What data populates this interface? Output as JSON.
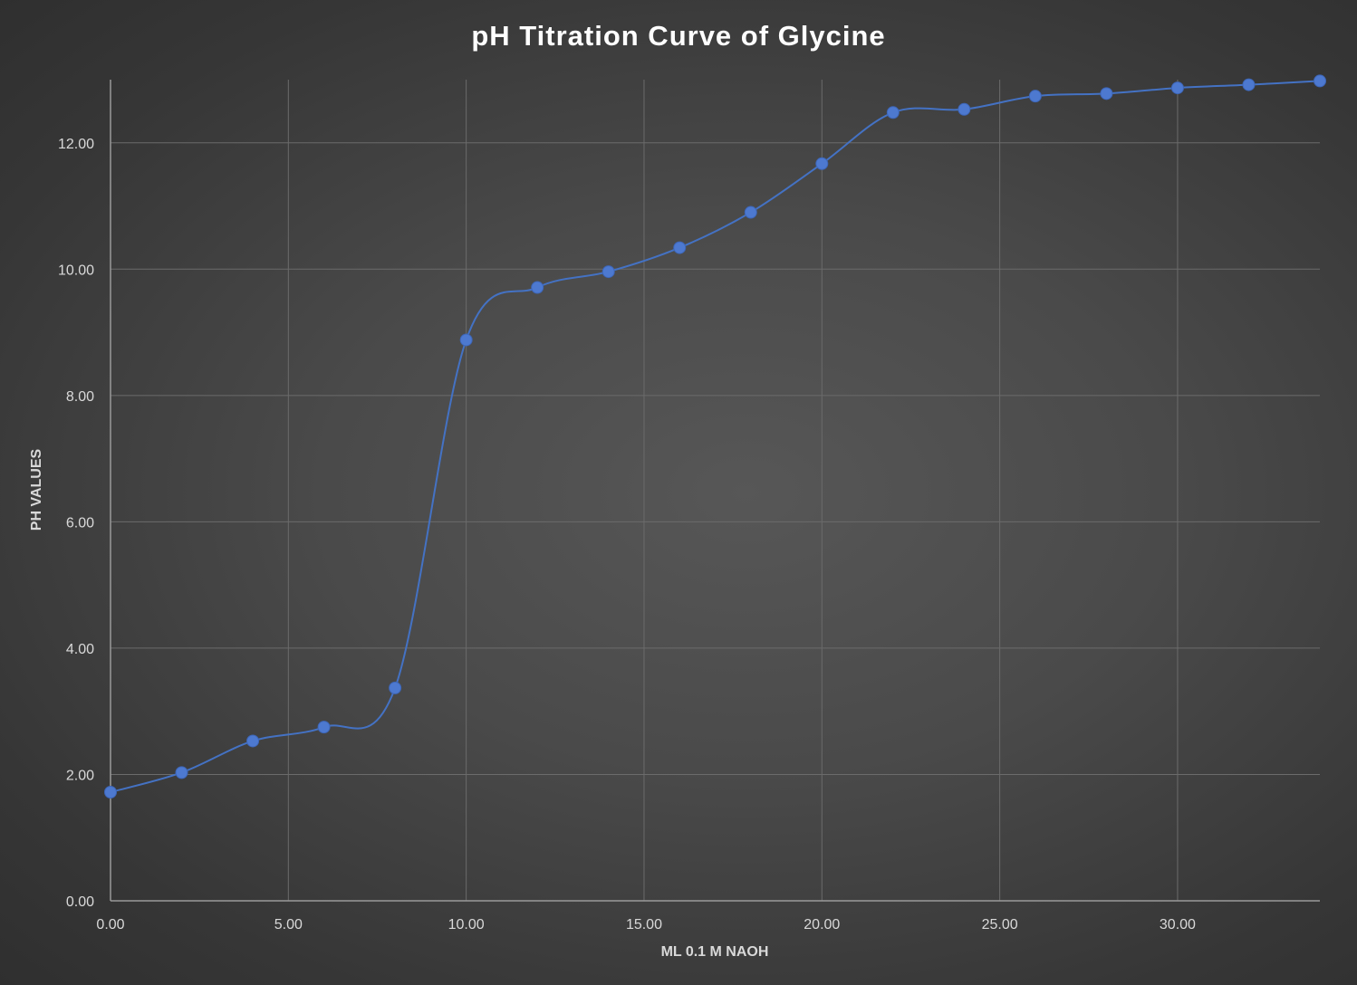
{
  "chart_data": {
    "type": "scatter",
    "title": "pH Titration Curve of Glycine",
    "xlabel": "ML 0.1 M NAOH",
    "ylabel": "PH VALUES",
    "xlim": [
      0,
      34
    ],
    "ylim": [
      0,
      13
    ],
    "x_ticks": [
      "0.00",
      "5.00",
      "10.00",
      "15.00",
      "20.00",
      "25.00",
      "30.00"
    ],
    "x_tick_values": [
      0,
      5,
      10,
      15,
      20,
      25,
      30
    ],
    "y_ticks": [
      "0.00",
      "2.00",
      "4.00",
      "6.00",
      "8.00",
      "10.00",
      "12.00"
    ],
    "y_tick_values": [
      0,
      2,
      4,
      6,
      8,
      10,
      12
    ],
    "grid": true,
    "smoothed_line": true,
    "series": [
      {
        "x": [
          0,
          2,
          4,
          6,
          8,
          10,
          12,
          14,
          16,
          18,
          20,
          22,
          24,
          26,
          28,
          30,
          32,
          34
        ],
        "y": [
          1.72,
          2.03,
          2.53,
          2.75,
          3.37,
          8.88,
          9.71,
          9.96,
          10.34,
          10.9,
          11.67,
          12.48,
          12.53,
          12.74,
          12.78,
          12.87,
          12.92,
          12.98
        ]
      }
    ],
    "colors": {
      "series": "#4472c4",
      "marker": "#4d79d0",
      "grid": "#6b6b6b",
      "axis": "#9a9a9a",
      "tick_text": "#d9d9d9",
      "title_text": "#ffffff"
    }
  }
}
